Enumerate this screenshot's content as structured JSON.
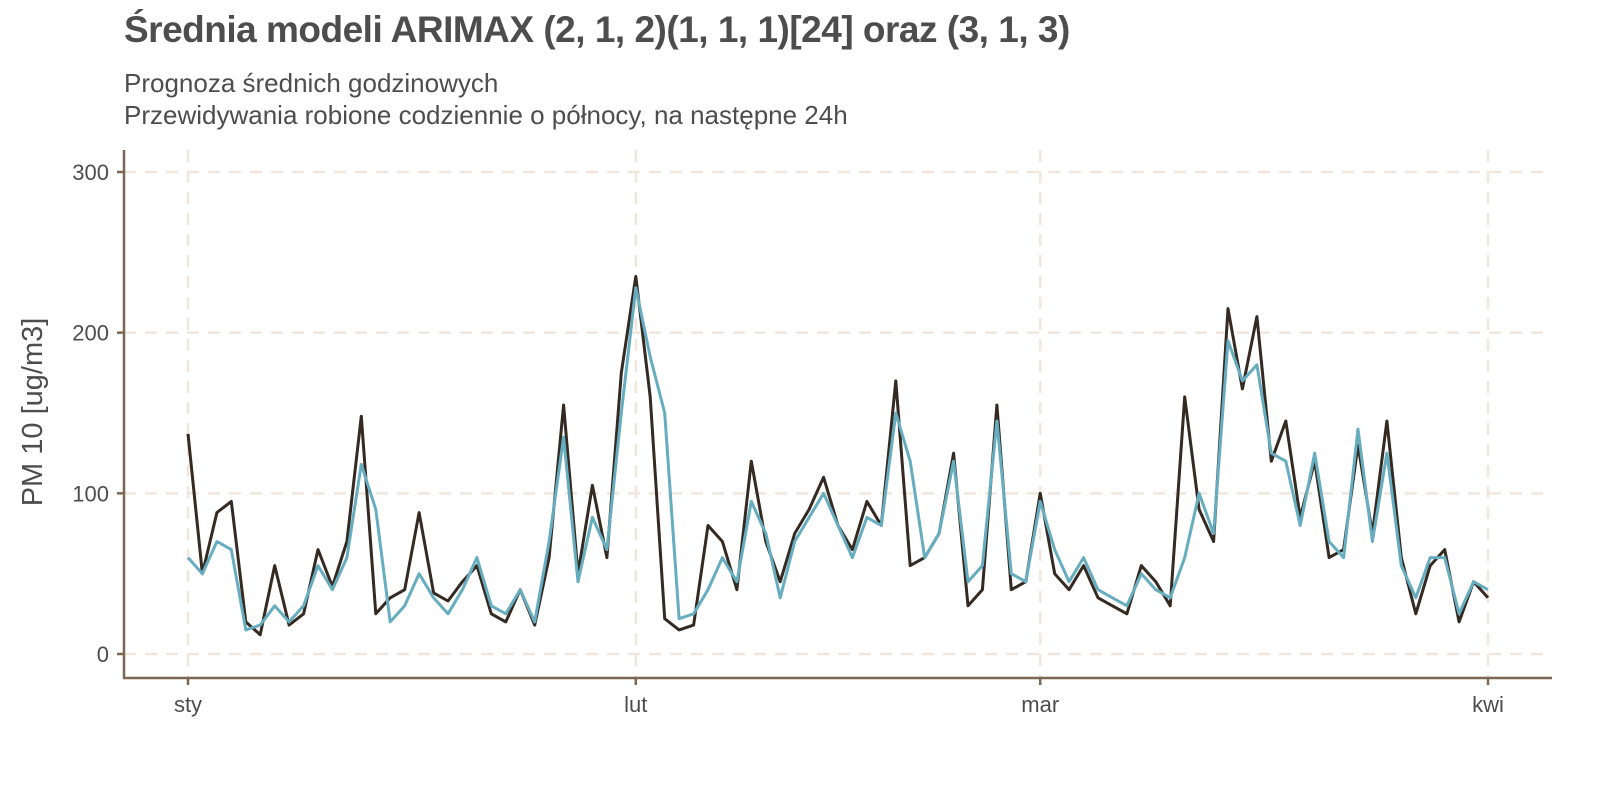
{
  "chart_data": {
    "type": "line",
    "title": "Średnia modeli ARIMAX (2, 1, 2)(1, 1, 1)[24] oraz (3, 1, 3)",
    "subtitle_lines": [
      "Prognoza średnich godzinowych",
      "Przewidywania robione codziennie o północy, na następne 24h"
    ],
    "xlabel": "",
    "ylabel": "PM 10 [ug/m3]",
    "ylim": [
      -15,
      315
    ],
    "xlim": [
      "2021-01-01",
      "2021-04-01"
    ],
    "yticks": [
      0,
      100,
      200,
      300
    ],
    "yticklabels": [
      "0",
      "100",
      "200",
      "300"
    ],
    "xticks": [
      "2021-01-01",
      "2021-02-01",
      "2021-03-01",
      "2021-04-01"
    ],
    "xticklabels": [
      "sty",
      "lut",
      "mar",
      "kwi"
    ],
    "grid": true,
    "legend": "none",
    "colors": {
      "actual": "#342a22",
      "forecast": "#67adc0",
      "grid": "#f1e6db",
      "axis": "#7d6652",
      "text": "#4d4d4d"
    },
    "x": [
      "2021-01-01",
      "2021-01-02",
      "2021-01-03",
      "2021-01-04",
      "2021-01-05",
      "2021-01-06",
      "2021-01-07",
      "2021-01-08",
      "2021-01-09",
      "2021-01-10",
      "2021-01-11",
      "2021-01-12",
      "2021-01-13",
      "2021-01-14",
      "2021-01-15",
      "2021-01-16",
      "2021-01-17",
      "2021-01-18",
      "2021-01-19",
      "2021-01-20",
      "2021-01-21",
      "2021-01-22",
      "2021-01-23",
      "2021-01-24",
      "2021-01-25",
      "2021-01-26",
      "2021-01-27",
      "2021-01-28",
      "2021-01-29",
      "2021-01-30",
      "2021-01-31",
      "2021-02-01",
      "2021-02-02",
      "2021-02-03",
      "2021-02-04",
      "2021-02-05",
      "2021-02-06",
      "2021-02-07",
      "2021-02-08",
      "2021-02-09",
      "2021-02-10",
      "2021-02-11",
      "2021-02-12",
      "2021-02-13",
      "2021-02-14",
      "2021-02-15",
      "2021-02-16",
      "2021-02-17",
      "2021-02-18",
      "2021-02-19",
      "2021-02-20",
      "2021-02-21",
      "2021-02-22",
      "2021-02-23",
      "2021-02-24",
      "2021-02-25",
      "2021-02-26",
      "2021-02-27",
      "2021-02-28",
      "2021-03-01",
      "2021-03-02",
      "2021-03-03",
      "2021-03-04",
      "2021-03-05",
      "2021-03-06",
      "2021-03-07",
      "2021-03-08",
      "2021-03-09",
      "2021-03-10",
      "2021-03-11",
      "2021-03-12",
      "2021-03-13",
      "2021-03-14",
      "2021-03-15",
      "2021-03-16",
      "2021-03-17",
      "2021-03-18",
      "2021-03-19",
      "2021-03-20",
      "2021-03-21",
      "2021-03-22",
      "2021-03-23",
      "2021-03-24",
      "2021-03-25",
      "2021-03-26",
      "2021-03-27",
      "2021-03-28",
      "2021-03-29",
      "2021-03-30",
      "2021-03-31",
      "2021-04-01"
    ],
    "series": [
      {
        "key": "actual",
        "values": [
          137,
          50,
          88,
          95,
          20,
          12,
          55,
          18,
          25,
          65,
          42,
          70,
          148,
          25,
          35,
          40,
          88,
          38,
          33,
          45,
          55,
          25,
          20,
          40,
          18,
          60,
          155,
          50,
          105,
          60,
          175,
          235,
          160,
          22,
          15,
          18,
          80,
          70,
          40,
          120,
          70,
          45,
          75,
          90,
          110,
          80,
          65,
          95,
          80,
          170,
          55,
          60,
          75,
          125,
          30,
          40,
          155,
          40,
          45,
          100,
          50,
          40,
          55,
          35,
          30,
          25,
          55,
          45,
          30,
          160,
          90,
          70,
          215,
          165,
          210,
          120,
          145,
          85,
          120,
          60,
          65,
          130,
          75,
          145,
          60,
          25,
          55,
          65,
          20,
          45,
          35
        ]
      },
      {
        "key": "forecast",
        "values": [
          60,
          50,
          70,
          65,
          15,
          18,
          30,
          20,
          30,
          55,
          40,
          60,
          118,
          90,
          20,
          30,
          50,
          35,
          25,
          40,
          60,
          30,
          25,
          40,
          20,
          70,
          135,
          45,
          85,
          65,
          150,
          228,
          185,
          150,
          22,
          25,
          40,
          60,
          45,
          95,
          75,
          35,
          70,
          85,
          100,
          80,
          60,
          85,
          80,
          150,
          120,
          60,
          75,
          120,
          45,
          55,
          145,
          50,
          45,
          95,
          65,
          45,
          60,
          40,
          35,
          30,
          50,
          40,
          35,
          60,
          100,
          75,
          195,
          170,
          180,
          125,
          120,
          80,
          125,
          70,
          60,
          140,
          70,
          125,
          55,
          35,
          60,
          60,
          25,
          45,
          40
        ]
      }
    ]
  }
}
